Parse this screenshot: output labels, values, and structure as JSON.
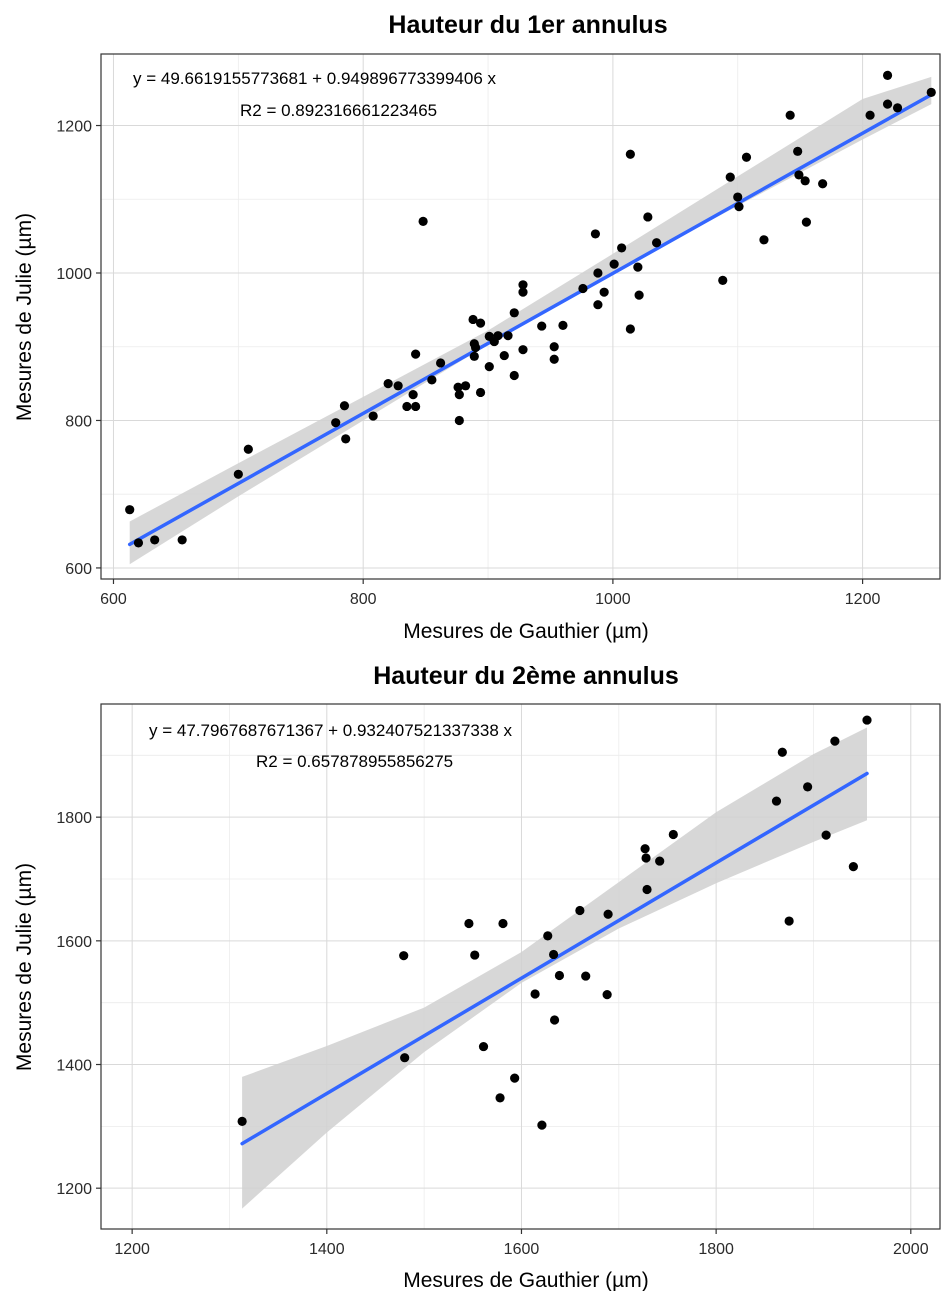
{
  "chart_data": [
    {
      "type": "scatter",
      "title": "Hauteur du 1er annulus",
      "xlabel": "Mesures de Gauthier (µm)",
      "ylabel": "Mesures de Julie (µm)",
      "xlim": [
        590,
        1262
      ],
      "ylim": [
        585,
        1297
      ],
      "x_ticks": [
        600,
        800,
        1000,
        1200
      ],
      "y_ticks": [
        600,
        800,
        1000,
        1200
      ],
      "x_tick_labels": [
        "600",
        "800",
        "1000",
        "1200"
      ],
      "y_tick_labels": [
        "600",
        "800",
        "1000",
        "1200"
      ],
      "grid": true,
      "equation_line1": "y =  49.6619155773681 + 0.949896773399406 x",
      "equation_line2": "R2 = 0.892316661223465",
      "regression": {
        "intercept": 49.6619155773681,
        "slope": 0.949896773399406,
        "x_range": [
          613,
          1255
        ],
        "color": "#3366ff"
      },
      "confidence_band": {
        "lower": [
          [
            613,
            605
          ],
          [
            700,
            697
          ],
          [
            800,
            800
          ],
          [
            900,
            903
          ],
          [
            1000,
            1000
          ],
          [
            1100,
            1091
          ],
          [
            1200,
            1181
          ],
          [
            1255,
            1229
          ]
        ],
        "upper": [
          [
            613,
            663
          ],
          [
            700,
            742
          ],
          [
            800,
            832
          ],
          [
            900,
            922
          ],
          [
            1000,
            1026
          ],
          [
            1100,
            1131
          ],
          [
            1200,
            1236
          ],
          [
            1255,
            1266
          ]
        ],
        "color": "#d0d0d0"
      },
      "point_color": "#000000",
      "points": [
        [
          613,
          679
        ],
        [
          620,
          634
        ],
        [
          633,
          638
        ],
        [
          655,
          638
        ],
        [
          700,
          727
        ],
        [
          708,
          761
        ],
        [
          778,
          797
        ],
        [
          785,
          820
        ],
        [
          786,
          775
        ],
        [
          808,
          806
        ],
        [
          820,
          850
        ],
        [
          828,
          847
        ],
        [
          835,
          819
        ],
        [
          840,
          835
        ],
        [
          842,
          890
        ],
        [
          842,
          819
        ],
        [
          848,
          1070
        ],
        [
          855,
          855
        ],
        [
          862,
          878
        ],
        [
          876,
          845
        ],
        [
          877,
          835
        ],
        [
          877,
          800
        ],
        [
          882,
          847
        ],
        [
          888,
          937
        ],
        [
          889,
          904
        ],
        [
          889,
          887
        ],
        [
          890,
          899
        ],
        [
          894,
          932
        ],
        [
          894,
          838
        ],
        [
          901,
          914
        ],
        [
          901,
          873
        ],
        [
          905,
          907
        ],
        [
          908,
          915
        ],
        [
          913,
          888
        ],
        [
          916,
          915
        ],
        [
          921,
          946
        ],
        [
          921,
          861
        ],
        [
          928,
          984
        ],
        [
          928,
          974
        ],
        [
          928,
          896
        ],
        [
          943,
          928
        ],
        [
          953,
          900
        ],
        [
          953,
          883
        ],
        [
          960,
          929
        ],
        [
          976,
          979
        ],
        [
          986,
          1053
        ],
        [
          988,
          1000
        ],
        [
          988,
          957
        ],
        [
          993,
          974
        ],
        [
          1001,
          1012
        ],
        [
          1007,
          1034
        ],
        [
          1014,
          1161
        ],
        [
          1014,
          924
        ],
        [
          1020,
          1008
        ],
        [
          1021,
          970
        ],
        [
          1028,
          1076
        ],
        [
          1035,
          1041
        ],
        [
          1088,
          990
        ],
        [
          1094,
          1130
        ],
        [
          1100,
          1103
        ],
        [
          1101,
          1090
        ],
        [
          1107,
          1157
        ],
        [
          1121,
          1045
        ],
        [
          1142,
          1214
        ],
        [
          1148,
          1165
        ],
        [
          1149,
          1133
        ],
        [
          1154,
          1125
        ],
        [
          1155,
          1069
        ],
        [
          1168,
          1121
        ],
        [
          1206,
          1214
        ],
        [
          1220,
          1268
        ],
        [
          1220,
          1229
        ],
        [
          1228,
          1224
        ],
        [
          1255,
          1245
        ]
      ]
    },
    {
      "type": "scatter",
      "title": "Hauteur du 2ème annulus",
      "xlabel": "Mesures de Gauthier (µm)",
      "ylabel": "Mesures de Julie (µm)",
      "xlim": [
        1168,
        2030
      ],
      "ylim": [
        1134,
        1983
      ],
      "x_ticks": [
        1200,
        1400,
        1600,
        1800,
        2000
      ],
      "y_ticks": [
        1200,
        1400,
        1600,
        1800
      ],
      "x_tick_labels": [
        "1200",
        "1400",
        "1600",
        "1800",
        "2000"
      ],
      "y_tick_labels": [
        "1200",
        "1400",
        "1600",
        "1800"
      ],
      "grid": true,
      "equation_line1": "y =  47.7967687671367 + 0.932407521337338 x",
      "equation_line2": "R2 = 0.657878955856275",
      "regression": {
        "intercept": 47.7967687671367,
        "slope": 0.932407521337338,
        "x_range": [
          1313,
          1955
        ],
        "color": "#3366ff"
      },
      "confidence_band": {
        "lower": [
          [
            1313,
            1167
          ],
          [
            1400,
            1290
          ],
          [
            1500,
            1420
          ],
          [
            1600,
            1532
          ],
          [
            1700,
            1620
          ],
          [
            1800,
            1693
          ],
          [
            1900,
            1760
          ],
          [
            1955,
            1795
          ]
        ],
        "upper": [
          [
            1313,
            1380
          ],
          [
            1400,
            1430
          ],
          [
            1500,
            1492
          ],
          [
            1600,
            1582
          ],
          [
            1700,
            1695
          ],
          [
            1800,
            1808
          ],
          [
            1900,
            1902
          ],
          [
            1955,
            1945
          ]
        ],
        "color": "#d0d0d0"
      },
      "point_color": "#000000",
      "points": [
        [
          1313,
          1308
        ],
        [
          1479,
          1576
        ],
        [
          1480,
          1411
        ],
        [
          1546,
          1628
        ],
        [
          1552,
          1577
        ],
        [
          1561,
          1429
        ],
        [
          1578,
          1346
        ],
        [
          1581,
          1628
        ],
        [
          1593,
          1378
        ],
        [
          1614,
          1514
        ],
        [
          1621,
          1302
        ],
        [
          1627,
          1608
        ],
        [
          1633,
          1578
        ],
        [
          1634,
          1472
        ],
        [
          1639,
          1544
        ],
        [
          1660,
          1649
        ],
        [
          1666,
          1543
        ],
        [
          1688,
          1513
        ],
        [
          1689,
          1643
        ],
        [
          1727,
          1749
        ],
        [
          1728,
          1734
        ],
        [
          1729,
          1683
        ],
        [
          1742,
          1729
        ],
        [
          1756,
          1772
        ],
        [
          1862,
          1826
        ],
        [
          1868,
          1905
        ],
        [
          1875,
          1632
        ],
        [
          1894,
          1849
        ],
        [
          1913,
          1771
        ],
        [
          1922,
          1923
        ],
        [
          1941,
          1720
        ],
        [
          1955,
          1957
        ]
      ]
    }
  ]
}
